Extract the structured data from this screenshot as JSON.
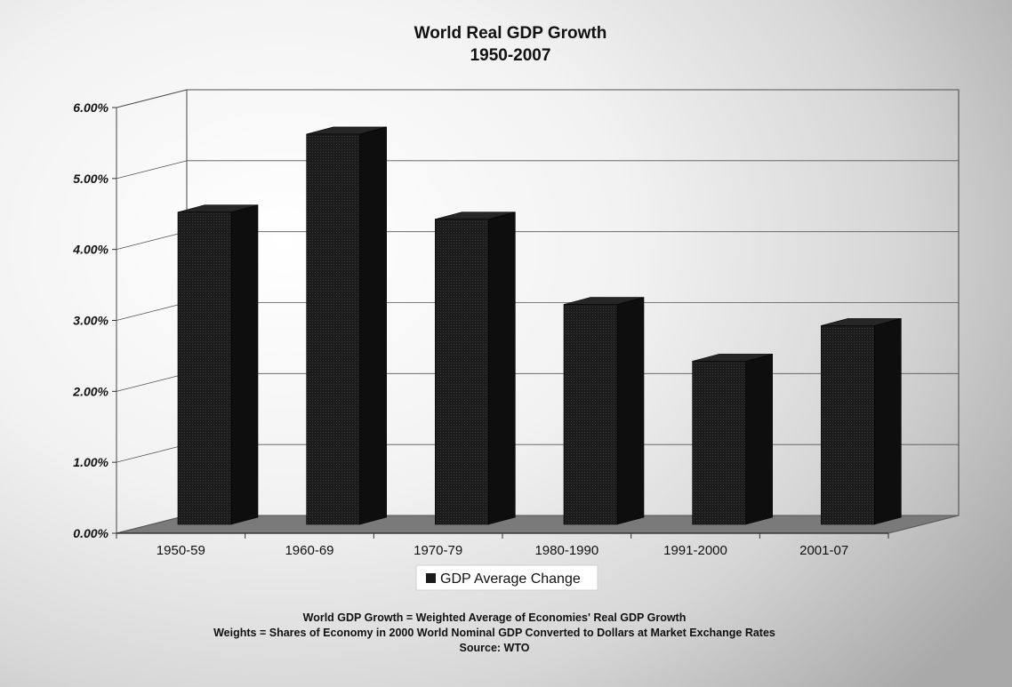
{
  "chart_data": {
    "type": "bar",
    "title": "World Real GDP Growth",
    "subtitle": "1950-2007",
    "categories": [
      "1950-59",
      "1960-69",
      "1970-79",
      "1980-1990",
      "1991-2000",
      "2001-07"
    ],
    "series": [
      {
        "name": "GDP Average Change",
        "values": [
          4.4,
          5.5,
          4.3,
          3.1,
          2.3,
          2.8
        ]
      }
    ],
    "y_ticks": [
      "0.00%",
      "1.00%",
      "2.00%",
      "3.00%",
      "4.00%",
      "5.00%",
      "6.00%"
    ],
    "ylim": [
      0,
      6
    ],
    "grid": true,
    "legend_position": "bottom",
    "three_d": true,
    "bar_color": "#1a1a1a",
    "floor_color": "#7a7a7a",
    "notes": [
      "World GDP Growth = Weighted Average of Economies' Real GDP Growth",
      "Weights = Shares of Economy in 2000 World Nominal GDP Converted to Dollars at Market Exchange Rates",
      "Source: WTO"
    ]
  }
}
